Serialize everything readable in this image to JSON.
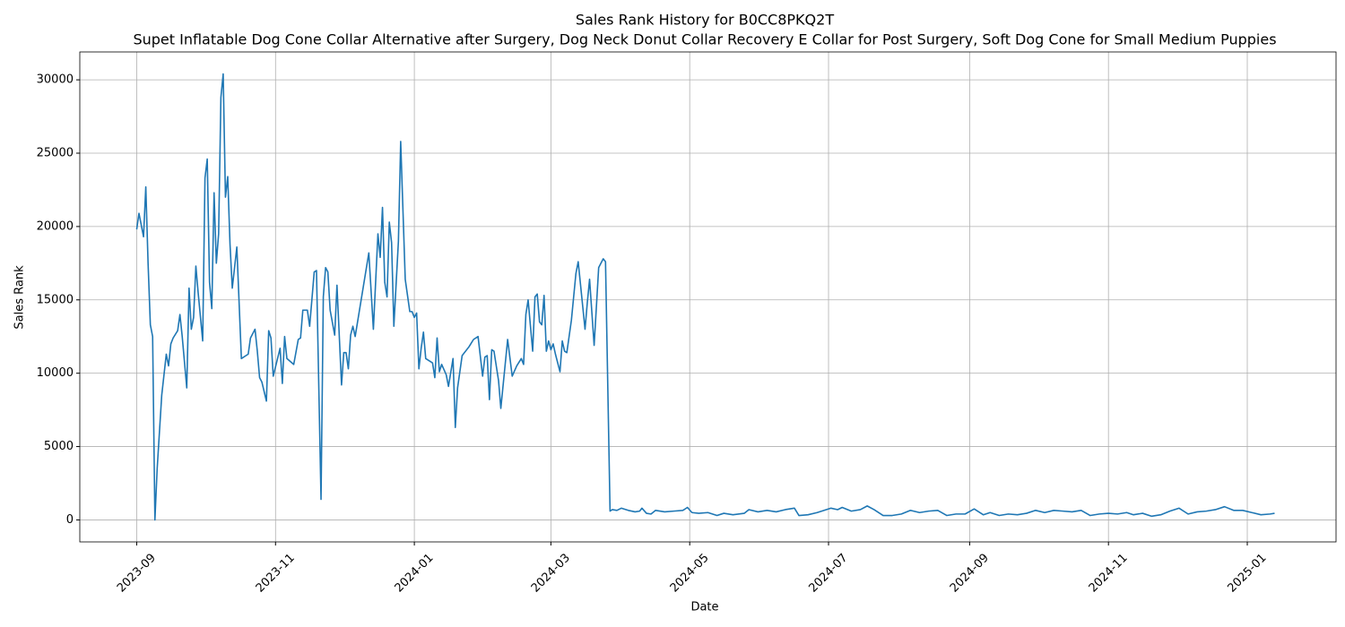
{
  "chart_data": {
    "type": "line",
    "title": "Sales Rank History for B0CC8PKQ2T",
    "subtitle": "Supet Inflatable Dog Cone Collar Alternative after Surgery, Dog Neck Donut Collar Recovery E Collar for Post Surgery, Soft Dog Cone for Small Medium Puppies",
    "x_label": "Date",
    "y_label": "Sales Rank",
    "x": [
      0,
      1,
      3,
      4,
      5,
      6,
      7,
      8,
      9,
      10,
      11,
      13,
      14,
      15,
      16,
      18,
      19,
      20,
      22,
      23,
      24,
      25,
      26,
      27,
      29,
      30,
      31,
      32,
      33,
      34,
      35,
      36,
      37,
      38,
      39,
      40,
      41,
      42,
      44,
      46,
      49,
      50,
      52,
      53,
      54,
      55,
      57,
      58,
      59,
      60,
      63,
      64,
      65,
      66,
      69,
      71,
      72,
      73,
      75,
      76,
      78,
      79,
      81,
      82,
      83,
      84,
      85,
      87,
      88,
      90,
      91,
      92,
      93,
      94,
      95,
      96,
      102,
      104,
      106,
      107,
      108,
      109,
      110,
      111,
      112,
      113,
      115,
      116,
      118,
      120,
      121,
      122,
      123,
      124,
      125,
      126,
      127,
      130,
      131,
      132,
      133,
      134,
      136,
      137,
      139,
      140,
      141,
      143,
      146,
      148,
      150,
      152,
      153,
      154,
      155,
      156,
      157,
      159,
      160,
      163,
      165,
      167,
      169,
      170,
      171,
      172,
      174,
      175,
      176,
      177,
      178,
      179,
      180,
      181,
      182,
      183,
      184,
      186,
      187,
      188,
      189,
      191,
      193,
      194,
      197,
      198,
      199,
      201,
      203,
      205,
      206,
      208,
      209,
      211,
      213,
      216,
      219,
      221,
      222,
      224,
      226,
      228,
      232,
      236,
      240,
      242,
      244,
      247,
      251,
      255,
      258,
      262,
      267,
      269,
      273,
      277,
      281,
      285,
      289,
      291,
      295,
      299,
      305,
      308,
      310,
      314,
      318,
      321,
      324,
      328,
      332,
      336,
      340,
      344,
      348,
      352,
      356,
      360,
      364,
      368,
      372,
      375,
      379,
      383,
      387,
      391,
      395,
      399,
      403,
      407,
      411,
      415,
      419,
      423,
      427,
      431,
      435,
      438,
      442,
      446,
      450,
      454,
      458,
      462,
      466,
      470,
      474,
      478,
      482,
      486,
      490,
      494,
      498,
      500
    ],
    "series": [
      {
        "name": "Sales Rank",
        "color": "#1f77b4",
        "values": [
          19800,
          20900,
          19300,
          22700,
          17500,
          13300,
          12500,
          0,
          3500,
          6000,
          8500,
          11300,
          10500,
          12000,
          12400,
          12900,
          14000,
          12500,
          9000,
          15800,
          13000,
          13800,
          17300,
          15500,
          12200,
          23300,
          24600,
          16200,
          14400,
          22300,
          17500,
          19500,
          28800,
          30400,
          22000,
          23400,
          18800,
          15800,
          18600,
          11000,
          11300,
          12400,
          13000,
          11500,
          9700,
          9400,
          8100,
          12900,
          12400,
          9800,
          11700,
          9300,
          12500,
          11000,
          10600,
          12300,
          12400,
          14300,
          14300,
          13200,
          16900,
          17000,
          1400,
          15200,
          17200,
          16900,
          14300,
          12600,
          16000,
          9200,
          11400,
          11400,
          10300,
          12600,
          13200,
          12500,
          18200,
          13000,
          19500,
          17900,
          21300,
          16200,
          15200,
          20300,
          18900,
          13200,
          19000,
          25800,
          16400,
          14200,
          14200,
          13800,
          14100,
          10300,
          11700,
          12800,
          11000,
          10700,
          9700,
          12400,
          10100,
          10600,
          9900,
          9100,
          11000,
          6300,
          9000,
          11200,
          11800,
          12300,
          12500,
          9800,
          11100,
          11200,
          8200,
          11600,
          11500,
          9500,
          7600,
          12300,
          9800,
          10500,
          11000,
          10600,
          14000,
          15000,
          11500,
          15200,
          15400,
          13500,
          13300,
          15300,
          11500,
          12200,
          11600,
          12000,
          11300,
          10100,
          12200,
          11500,
          11400,
          13600,
          16800,
          17600,
          13000,
          14800,
          16400,
          11900,
          17200,
          17800,
          17600,
          600,
          700,
          650,
          800,
          650,
          550,
          600,
          800,
          450,
          400,
          650,
          550,
          600,
          650,
          850,
          500,
          450,
          500,
          300,
          450,
          350,
          450,
          700,
          550,
          650,
          550,
          700,
          800,
          300,
          350,
          500,
          800,
          700,
          850,
          600,
          700,
          950,
          700,
          300,
          300,
          400,
          650,
          500,
          600,
          650,
          300,
          400,
          400,
          750,
          350,
          500,
          300,
          400,
          350,
          450,
          650,
          500,
          650,
          600,
          550,
          650,
          300,
          400,
          450,
          400,
          500,
          350,
          450,
          250,
          350,
          600,
          800,
          400,
          550,
          600,
          700,
          900,
          650,
          650,
          500,
          350,
          400,
          450
        ]
      }
    ],
    "xlim": [
      -25,
      527
    ],
    "xticks": [
      {
        "value": 0,
        "label": "2023-09"
      },
      {
        "value": 61,
        "label": "2023-11"
      },
      {
        "value": 122,
        "label": "2024-01"
      },
      {
        "value": 182,
        "label": "2024-03"
      },
      {
        "value": 243,
        "label": "2024-05"
      },
      {
        "value": 304,
        "label": "2024-07"
      },
      {
        "value": 366,
        "label": "2024-09"
      },
      {
        "value": 427,
        "label": "2024-11"
      },
      {
        "value": 488,
        "label": "2025-01"
      }
    ],
    "ylim": [
      -1500,
      31900
    ],
    "yticks": [
      0,
      5000,
      10000,
      15000,
      20000,
      25000,
      30000
    ],
    "grid": true
  }
}
